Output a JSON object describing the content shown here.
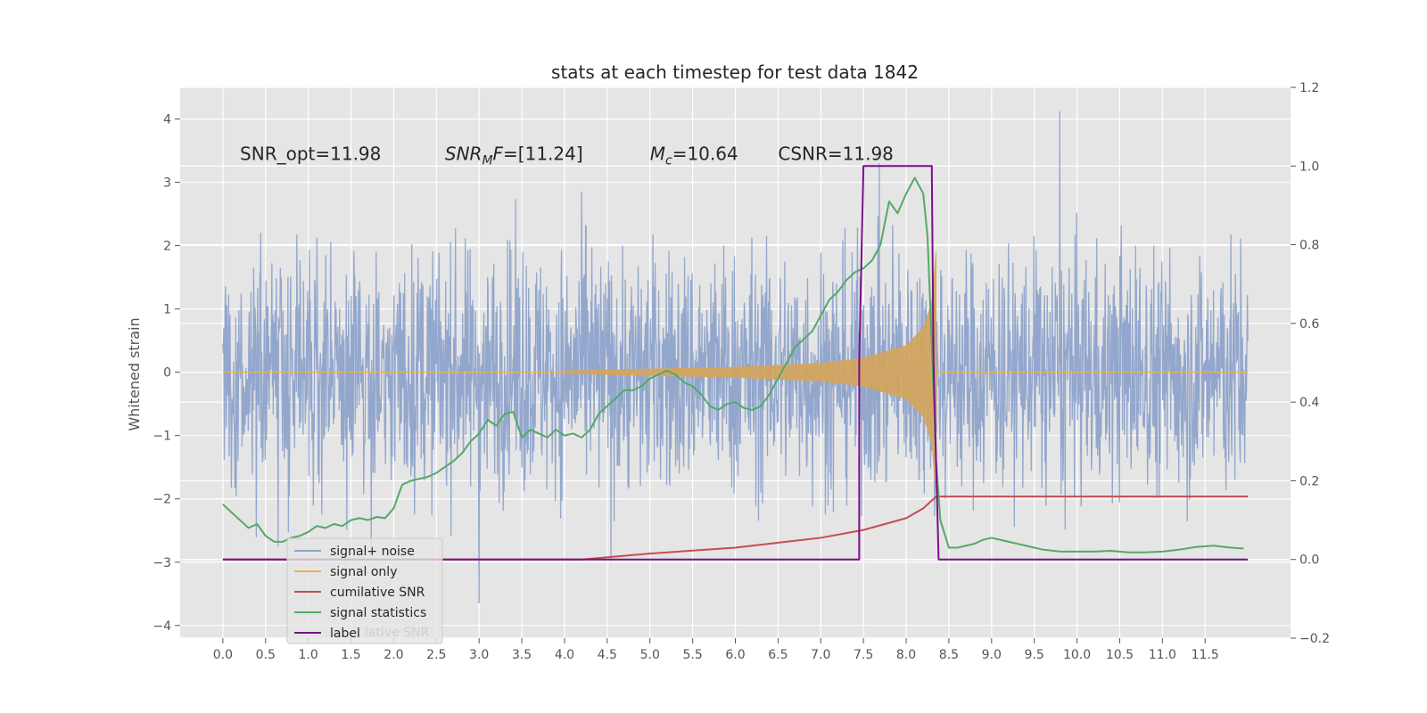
{
  "chart_data": {
    "type": "line",
    "title": "stats at each timestep for test data 1842",
    "ylabel_left": "Whitened strain",
    "ylabel_right": "",
    "xlabel": "",
    "xlim": [
      -0.5,
      12.5
    ],
    "ylim_left": [
      -4.2,
      4.5
    ],
    "ylim_right": [
      -0.2,
      1.2
    ],
    "x_ticks": [
      0.0,
      0.5,
      1.0,
      1.5,
      2.0,
      2.5,
      3.0,
      3.5,
      4.0,
      4.5,
      5.0,
      5.5,
      6.0,
      6.5,
      7.0,
      7.5,
      8.0,
      8.5,
      9.0,
      9.5,
      10.0,
      10.5,
      11.0,
      11.5
    ],
    "x_tick_labels": [
      "0.0",
      "0.5",
      "1.0",
      "1.5",
      "2.0",
      "2.5",
      "3.0",
      "3.5",
      "4.0",
      "4.5",
      "5.0",
      "5.5",
      "6.0",
      "6.5",
      "7.0",
      "7.5",
      "8.0",
      "8.5",
      "9.0",
      "9.5",
      "10.0",
      "10.5",
      "11.0",
      "11.5"
    ],
    "y_left_ticks": [
      4,
      3,
      2,
      1,
      0,
      -1,
      -2,
      -3,
      -4
    ],
    "y_left_tick_labels": [
      "4",
      "3",
      "2",
      "1",
      "0",
      "−1",
      "−2",
      "−3",
      "−4"
    ],
    "y_right_ticks": [
      1.2,
      1.0,
      0.8,
      0.6,
      0.4,
      0.2,
      0.0,
      -0.2
    ],
    "y_right_tick_labels": [
      "1.2",
      "1.0",
      "0.8",
      "0.6",
      "0.4",
      "0.2",
      "0.0",
      "−0.2"
    ],
    "grid": true,
    "legend_position": "lower-left",
    "annotations": [
      {
        "text": "SNR_opt=11.98",
        "x": 0.2,
        "y": 3.35
      },
      {
        "text_italic": "SNR",
        "text_sub": "M",
        "text_rest_italic": "F",
        "text_tail": "=[11.24]",
        "x": 2.6,
        "y": 3.35
      },
      {
        "text_italic": "M",
        "text_sub": "c",
        "text_tail": "=10.64",
        "x": 5.0,
        "y": 3.35
      },
      {
        "text": "CSNR=11.98",
        "x": 6.5,
        "y": 3.35
      }
    ],
    "legend_overlap_text": "lative SNR",
    "series": [
      {
        "name": "signal+ noise",
        "axis": "left",
        "color": "#8EA3CB",
        "style": "noise",
        "x_range": [
          0.0,
          12.0
        ],
        "envelope_typical": 2.4,
        "peak_values": [
          {
            "x": 9.8,
            "y": 4.12
          },
          {
            "x": 3.0,
            "y": -3.65
          }
        ]
      },
      {
        "name": "signal only",
        "axis": "left",
        "color": "#D4A55C",
        "style": "chirp",
        "x_start": 0.0,
        "x_merge": 8.35,
        "x_end": 12.0,
        "envelope_x": [
          4.0,
          5.0,
          6.0,
          7.0,
          7.5,
          8.0,
          8.2,
          8.3,
          8.35
        ],
        "envelope_y": [
          0.02,
          0.05,
          0.08,
          0.14,
          0.22,
          0.42,
          0.7,
          1.1,
          1.9
        ]
      },
      {
        "name": "cumilative SNR",
        "axis": "right",
        "color": "#C44E52",
        "x": [
          0.0,
          4.2,
          5.0,
          6.0,
          7.0,
          7.5,
          8.0,
          8.2,
          8.35,
          12.0
        ],
        "y": [
          0.0,
          0.0,
          0.015,
          0.03,
          0.055,
          0.075,
          0.105,
          0.13,
          0.16,
          0.16
        ]
      },
      {
        "name": "signal statistics",
        "axis": "right",
        "color": "#55A868",
        "x": [
          0.0,
          0.1,
          0.2,
          0.3,
          0.4,
          0.5,
          0.6,
          0.7,
          0.8,
          0.9,
          1.0,
          1.1,
          1.2,
          1.3,
          1.4,
          1.5,
          1.6,
          1.7,
          1.8,
          1.9,
          2.0,
          2.1,
          2.2,
          2.3,
          2.4,
          2.5,
          2.6,
          2.7,
          2.8,
          2.9,
          3.0,
          3.1,
          3.2,
          3.3,
          3.4,
          3.5,
          3.6,
          3.7,
          3.8,
          3.9,
          4.0,
          4.1,
          4.2,
          4.3,
          4.4,
          4.5,
          4.6,
          4.7,
          4.8,
          4.9,
          5.0,
          5.1,
          5.2,
          5.3,
          5.4,
          5.5,
          5.6,
          5.7,
          5.8,
          5.9,
          6.0,
          6.1,
          6.2,
          6.3,
          6.4,
          6.5,
          6.6,
          6.7,
          6.8,
          6.9,
          7.0,
          7.1,
          7.2,
          7.3,
          7.4,
          7.5,
          7.6,
          7.7,
          7.8,
          7.9,
          8.0,
          8.1,
          8.2,
          8.25,
          8.3,
          8.35,
          8.4,
          8.5,
          8.6,
          8.7,
          8.8,
          8.9,
          9.0,
          9.2,
          9.4,
          9.6,
          9.8,
          10.0,
          10.2,
          10.4,
          10.6,
          10.8,
          11.0,
          11.2,
          11.4,
          11.6,
          11.8,
          11.95
        ],
        "y": [
          0.14,
          0.12,
          0.1,
          0.08,
          0.09,
          0.06,
          0.045,
          0.045,
          0.055,
          0.06,
          0.07,
          0.085,
          0.08,
          0.09,
          0.085,
          0.1,
          0.105,
          0.1,
          0.108,
          0.105,
          0.13,
          0.19,
          0.2,
          0.205,
          0.21,
          0.22,
          0.235,
          0.25,
          0.27,
          0.3,
          0.32,
          0.355,
          0.34,
          0.37,
          0.375,
          0.31,
          0.33,
          0.32,
          0.31,
          0.33,
          0.315,
          0.32,
          0.31,
          0.33,
          0.37,
          0.39,
          0.41,
          0.43,
          0.43,
          0.44,
          0.46,
          0.47,
          0.48,
          0.47,
          0.45,
          0.44,
          0.42,
          0.39,
          0.38,
          0.395,
          0.4,
          0.385,
          0.38,
          0.39,
          0.42,
          0.46,
          0.5,
          0.54,
          0.56,
          0.58,
          0.62,
          0.66,
          0.68,
          0.71,
          0.73,
          0.74,
          0.76,
          0.8,
          0.91,
          0.88,
          0.93,
          0.97,
          0.93,
          0.82,
          0.55,
          0.25,
          0.1,
          0.03,
          0.03,
          0.035,
          0.04,
          0.05,
          0.055,
          0.045,
          0.035,
          0.025,
          0.02,
          0.02,
          0.02,
          0.022,
          0.018,
          0.018,
          0.02,
          0.025,
          0.032,
          0.035,
          0.03,
          0.028
        ]
      },
      {
        "name": "label",
        "axis": "right",
        "color": "#7A0E8A",
        "x": [
          0.0,
          7.45,
          7.45,
          7.5,
          8.3,
          8.32,
          8.38,
          12.0
        ],
        "y": [
          0.0,
          0.0,
          0.5,
          1.0,
          1.0,
          0.5,
          0.0,
          0.0
        ]
      }
    ]
  },
  "legend": {
    "items": [
      {
        "label": "signal+ noise",
        "color": "#8EA3CB"
      },
      {
        "label": "signal only",
        "color": "#E8B34D"
      },
      {
        "label": "cumilative SNR",
        "color": "#C44E52"
      },
      {
        "label": "signal statistics",
        "color": "#55A868"
      },
      {
        "label": "label",
        "color": "#7A0E8A"
      }
    ]
  }
}
